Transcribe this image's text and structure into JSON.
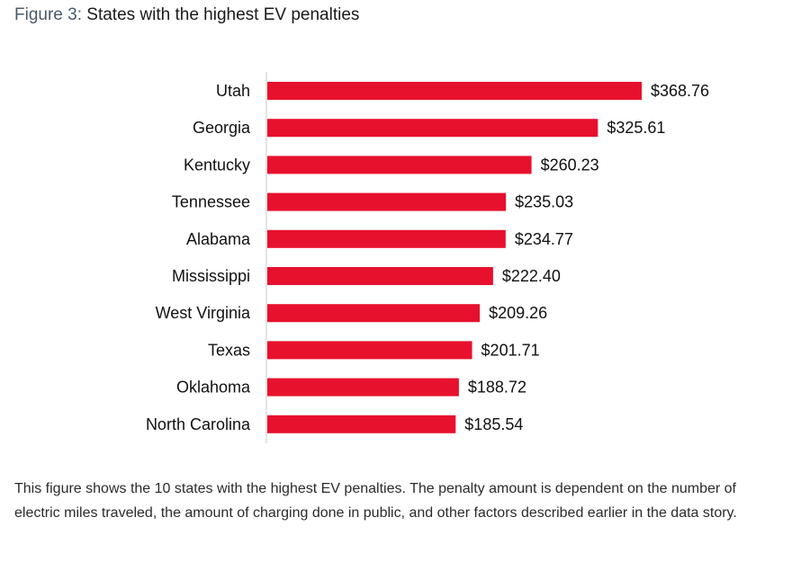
{
  "title": {
    "prefix": "Figure 3:",
    "text": "States with the highest EV penalties"
  },
  "caption": "This figure shows the 10 states with the highest EV penalties. The penalty amount is dependent on the number of electric miles traveled, the amount of charging done in public, and other factors described earlier in the data story.",
  "colors": {
    "bar": "#e8112d",
    "axis": "#c8c8c8",
    "text": "#111111"
  },
  "chart_data": {
    "type": "bar",
    "orientation": "horizontal",
    "categories": [
      "Utah",
      "Georgia",
      "Kentucky",
      "Tennessee",
      "Alabama",
      "Mississippi",
      "West Virginia",
      "Texas",
      "Oklahoma",
      "North Carolina"
    ],
    "values": [
      368.76,
      325.61,
      260.23,
      235.03,
      234.77,
      222.4,
      209.26,
      201.71,
      188.72,
      185.54
    ],
    "value_labels": [
      "$368.76",
      "$325.61",
      "$260.23",
      "$235.03",
      "$234.77",
      "$222.40",
      "$209.26",
      "$201.71",
      "$188.72",
      "$185.54"
    ],
    "title": "",
    "xlabel": "",
    "ylabel": "",
    "grid": false,
    "legend": "none"
  }
}
